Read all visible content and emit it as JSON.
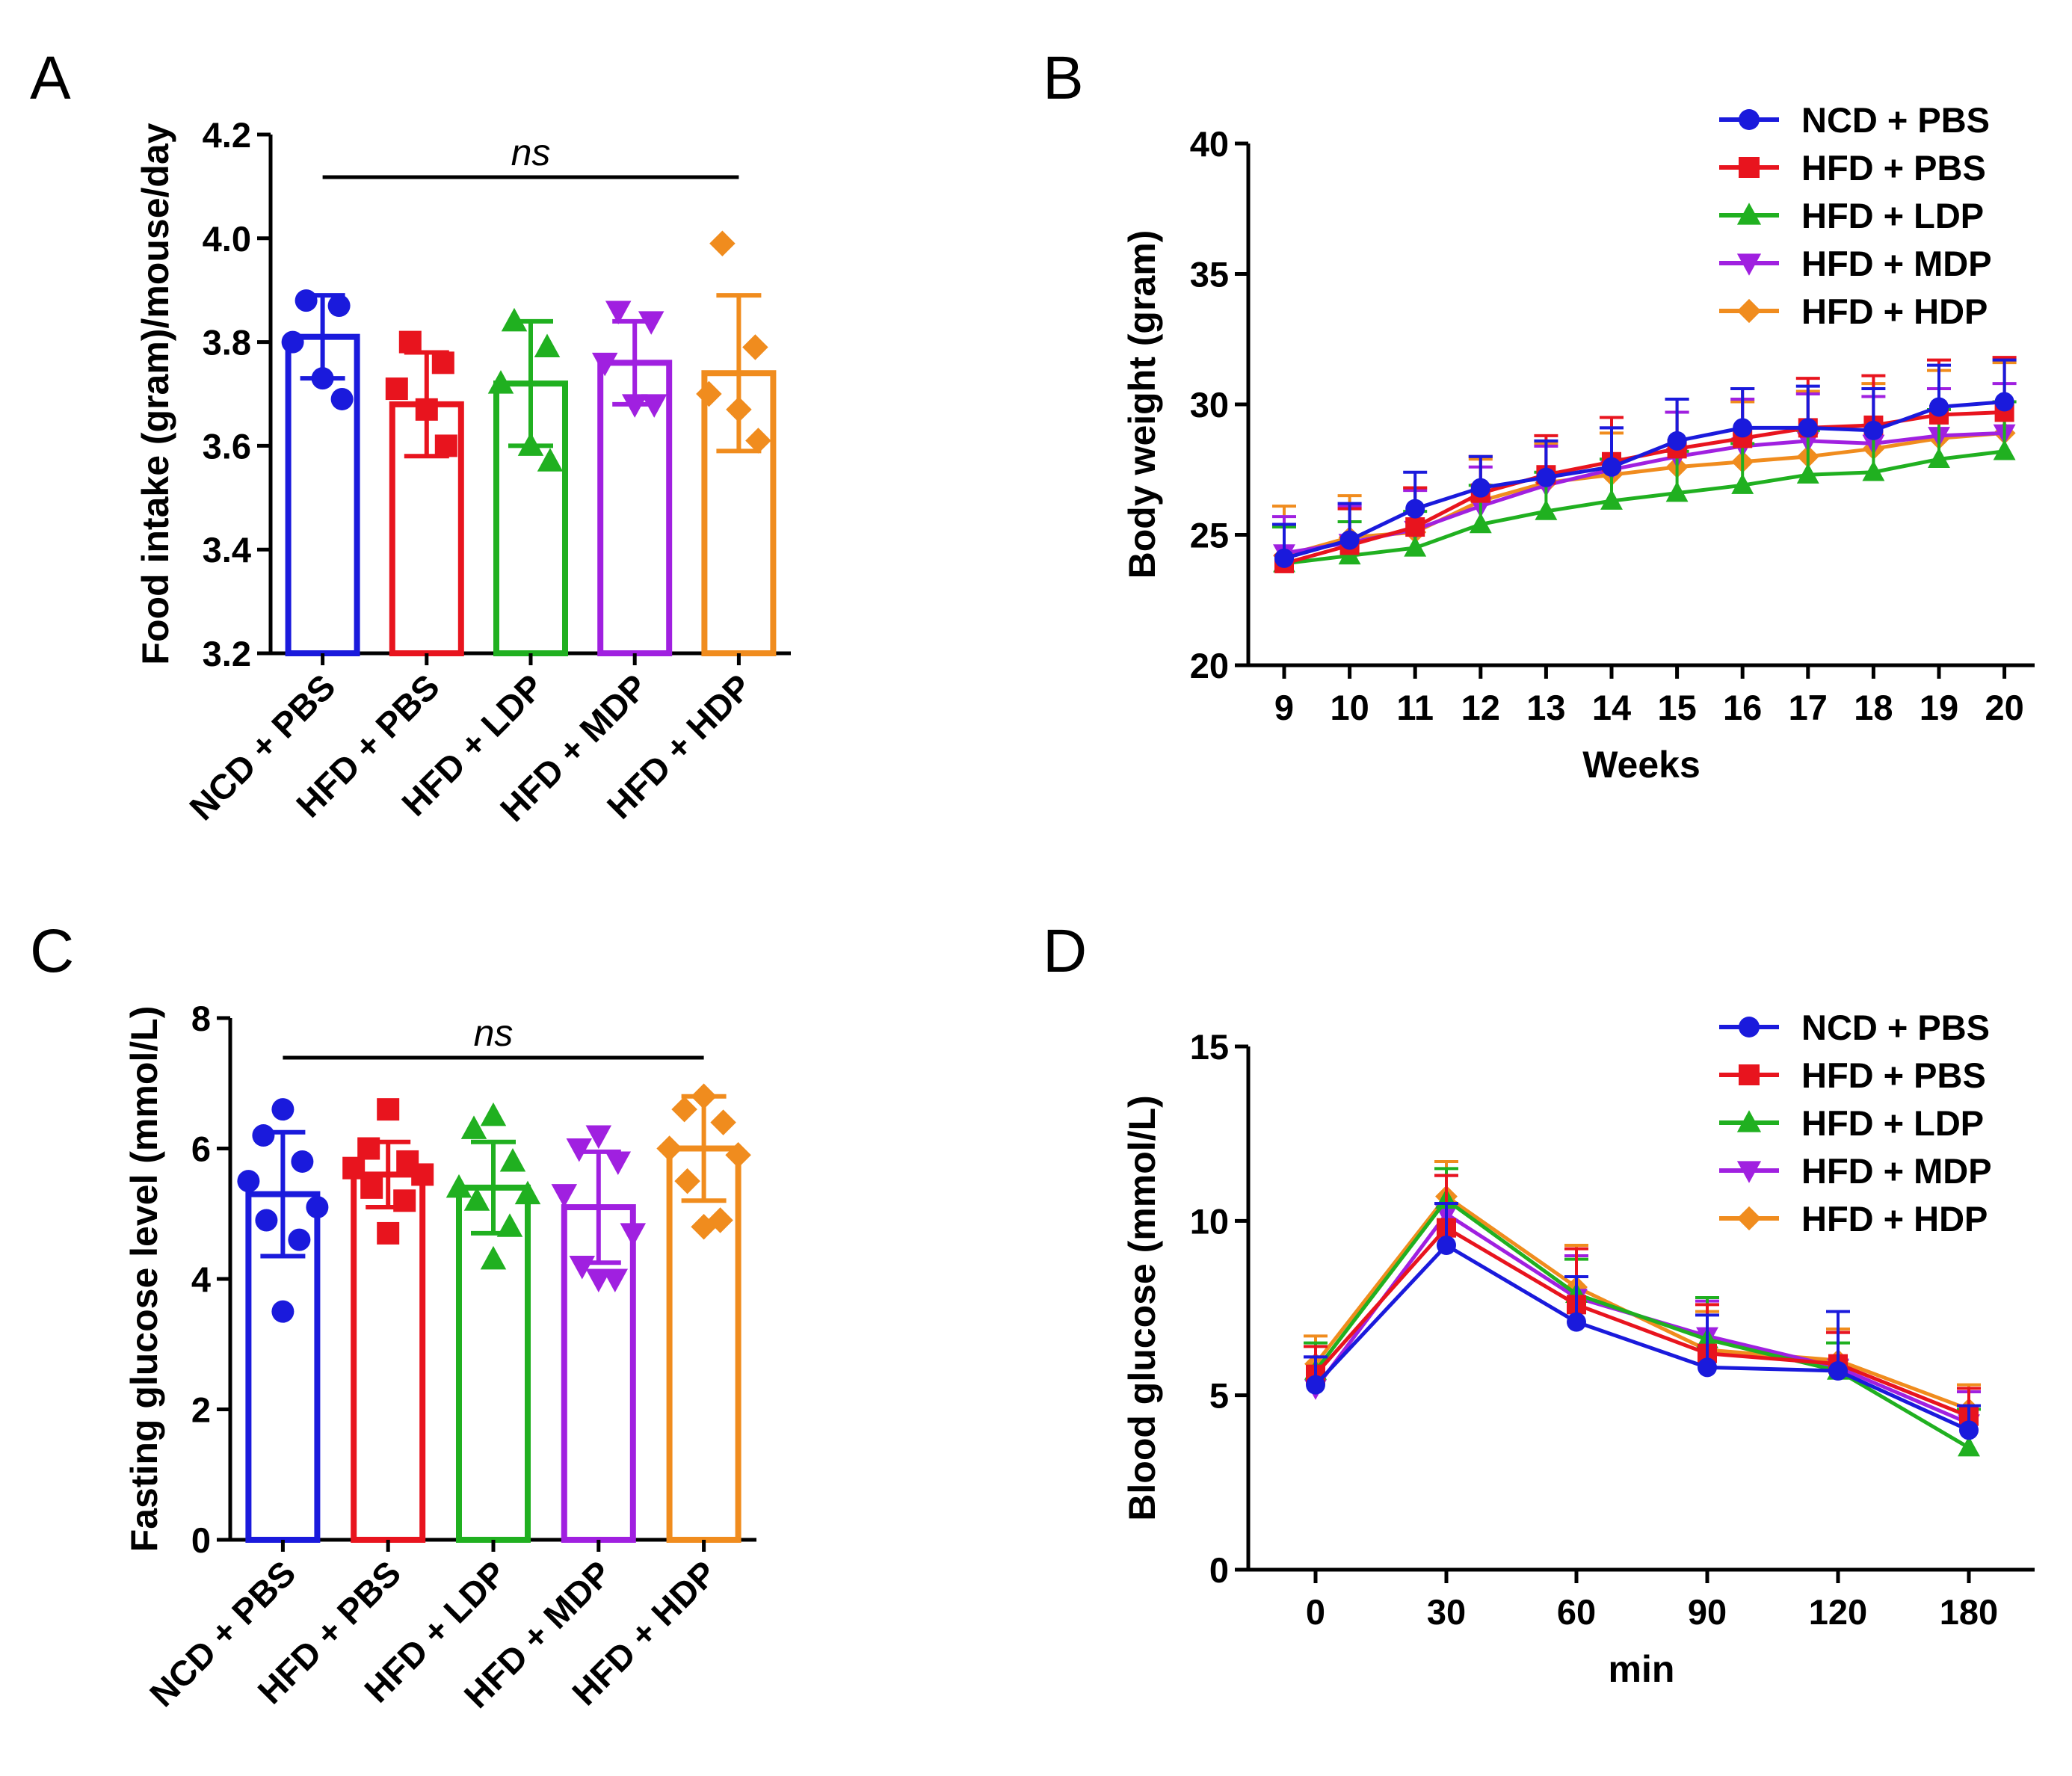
{
  "chart_data": [
    {
      "panel": "A",
      "type": "bar",
      "ylabel": "Food intake (gram)/mouse/day",
      "ylim": [
        3.2,
        4.2
      ],
      "yticks": [
        "3.2",
        "3.4",
        "3.6",
        "3.8",
        "4.0",
        "4.2"
      ],
      "annotation": "ns",
      "categories": [
        "NCD + PBS",
        "HFD + PBS",
        "HFD + LDP",
        "HFD + MDP",
        "HFD + HDP"
      ],
      "values": [
        3.81,
        3.68,
        3.72,
        3.76,
        3.74
      ],
      "errors": [
        0.08,
        0.1,
        0.12,
        0.08,
        0.15
      ],
      "points": [
        [
          3.88,
          3.87,
          3.8,
          3.73,
          3.69
        ],
        [
          3.8,
          3.76,
          3.71,
          3.67,
          3.6
        ],
        [
          3.84,
          3.79,
          3.72,
          3.6,
          3.57
        ],
        [
          3.86,
          3.84,
          3.76,
          3.68,
          3.68
        ],
        [
          3.99,
          3.79,
          3.7,
          3.67,
          3.61
        ]
      ],
      "markers": [
        "circle",
        "square",
        "triangle-up",
        "triangle-down",
        "diamond"
      ],
      "colors": [
        "#1a1adc",
        "#e8141e",
        "#20b020",
        "#a020e0",
        "#f08c1e"
      ]
    },
    {
      "panel": "B",
      "type": "line",
      "xlabel": "Weeks",
      "ylabel": "Body weight (gram)",
      "xlim": [
        9,
        20
      ],
      "ylim": [
        20,
        40
      ],
      "x": [
        9,
        10,
        11,
        12,
        13,
        14,
        15,
        16,
        17,
        18,
        19,
        20
      ],
      "xticks": [
        "9",
        "10",
        "11",
        "12",
        "13",
        "14",
        "15",
        "16",
        "17",
        "18",
        "19",
        "20"
      ],
      "yticks": [
        "20",
        "25",
        "30",
        "35",
        "40"
      ],
      "legend_position": "top-right",
      "series": [
        {
          "name": "NCD + PBS",
          "marker": "circle",
          "color": "#1a1adc",
          "values": [
            24.1,
            24.8,
            26.0,
            26.8,
            27.2,
            27.6,
            28.6,
            29.1,
            29.1,
            29.0,
            29.9,
            30.1
          ],
          "errors": [
            1.3,
            1.4,
            1.4,
            1.2,
            1.4,
            1.5,
            1.6,
            1.5,
            1.6,
            1.6,
            1.6,
            1.6
          ]
        },
        {
          "name": "HFD + PBS",
          "marker": "square",
          "color": "#e8141e",
          "values": [
            23.9,
            24.6,
            25.3,
            26.6,
            27.3,
            27.8,
            28.3,
            28.7,
            29.1,
            29.2,
            29.6,
            29.7
          ],
          "errors": [
            1.5,
            1.4,
            1.5,
            1.4,
            1.5,
            1.7,
            1.9,
            1.9,
            1.9,
            1.9,
            2.1,
            2.1
          ]
        },
        {
          "name": "HFD + LDP",
          "marker": "triangle-up",
          "color": "#20b020",
          "values": [
            23.9,
            24.2,
            24.5,
            25.4,
            25.9,
            26.3,
            26.6,
            26.9,
            27.3,
            27.4,
            27.9,
            28.2
          ],
          "errors": [
            1.4,
            1.3,
            1.4,
            1.5,
            1.5,
            1.6,
            1.6,
            1.6,
            1.7,
            1.8,
            1.9,
            1.9
          ]
        },
        {
          "name": "HFD + MDP",
          "marker": "triangle-down",
          "color": "#a020e0",
          "values": [
            24.3,
            24.7,
            25.2,
            26.1,
            26.9,
            27.5,
            28.0,
            28.4,
            28.6,
            28.5,
            28.8,
            28.9
          ],
          "errors": [
            1.4,
            1.4,
            1.5,
            1.5,
            1.5,
            1.6,
            1.7,
            1.8,
            1.8,
            1.8,
            1.8,
            1.9
          ]
        },
        {
          "name": "HFD + HDP",
          "marker": "diamond",
          "color": "#f08c1e",
          "values": [
            24.2,
            24.9,
            25.1,
            26.3,
            27.0,
            27.3,
            27.6,
            27.8,
            28.0,
            28.3,
            28.7,
            28.9
          ],
          "errors": [
            1.9,
            1.6,
            1.7,
            1.6,
            1.5,
            1.6,
            2.1,
            2.3,
            2.5,
            2.5,
            2.6,
            2.7
          ]
        }
      ]
    },
    {
      "panel": "C",
      "type": "bar",
      "ylabel": "Fasting glucose level (mmol/L)",
      "ylim": [
        0,
        8
      ],
      "yticks": [
        "0",
        "2",
        "4",
        "6",
        "8"
      ],
      "annotation": "ns",
      "categories": [
        "NCD + PBS",
        "HFD + PBS",
        "HFD + LDP",
        "HFD + MDP",
        "HFD + HDP"
      ],
      "values": [
        5.3,
        5.6,
        5.4,
        5.1,
        6.0
      ],
      "errors": [
        0.95,
        0.5,
        0.7,
        0.85,
        0.8
      ],
      "points": [
        [
          6.6,
          6.2,
          5.8,
          5.5,
          5.1,
          4.9,
          4.6,
          3.5
        ],
        [
          6.6,
          6.0,
          5.8,
          5.7,
          5.6,
          5.4,
          5.2,
          4.7
        ],
        [
          6.5,
          6.3,
          5.8,
          5.4,
          5.3,
          5.2,
          4.8,
          4.3
        ],
        [
          6.2,
          6.0,
          5.8,
          5.3,
          4.7,
          4.2,
          4.0,
          4.0
        ],
        [
          6.8,
          6.6,
          6.4,
          6.0,
          5.9,
          5.5,
          4.9,
          4.8
        ]
      ],
      "markers": [
        "circle",
        "square",
        "triangle-up",
        "triangle-down",
        "diamond"
      ],
      "colors": [
        "#1a1adc",
        "#e8141e",
        "#20b020",
        "#a020e0",
        "#f08c1e"
      ]
    },
    {
      "panel": "D",
      "type": "line",
      "xlabel": "min",
      "ylabel": "Blood glucose (mmol/L)",
      "x": [
        "0",
        "30",
        "60",
        "90",
        "120",
        "180"
      ],
      "ylim": [
        0,
        15
      ],
      "yticks": [
        "0",
        "5",
        "10",
        "15"
      ],
      "legend_position": "top-right",
      "series": [
        {
          "name": "NCD + PBS",
          "marker": "circle",
          "color": "#1a1adc",
          "values": [
            5.3,
            9.3,
            7.1,
            5.8,
            5.7,
            4.0
          ],
          "errors": [
            0.8,
            1.2,
            1.3,
            1.5,
            1.7,
            0.7
          ]
        },
        {
          "name": "HFD + PBS",
          "marker": "square",
          "color": "#e8141e",
          "values": [
            5.6,
            9.8,
            7.6,
            6.2,
            5.9,
            4.4
          ],
          "errors": [
            0.8,
            1.5,
            1.6,
            1.4,
            0.9,
            0.8
          ]
        },
        {
          "name": "HFD + LDP",
          "marker": "triangle-up",
          "color": "#20b020",
          "values": [
            5.7,
            10.6,
            7.9,
            6.6,
            5.7,
            3.5
          ],
          "errors": [
            0.8,
            0.9,
            1.0,
            1.2,
            0.8,
            1.1
          ]
        },
        {
          "name": "HFD + MDP",
          "marker": "triangle-down",
          "color": "#a020e0",
          "values": [
            5.2,
            10.2,
            7.8,
            6.7,
            5.8,
            4.2
          ],
          "errors": [
            0.9,
            1.1,
            1.2,
            1.0,
            1.0,
            0.9
          ]
        },
        {
          "name": "HFD + HDP",
          "marker": "diamond",
          "color": "#f08c1e",
          "values": [
            5.9,
            10.7,
            8.1,
            6.3,
            6.0,
            4.6
          ],
          "errors": [
            0.8,
            1.0,
            1.2,
            1.1,
            0.9,
            0.7
          ]
        }
      ]
    }
  ]
}
